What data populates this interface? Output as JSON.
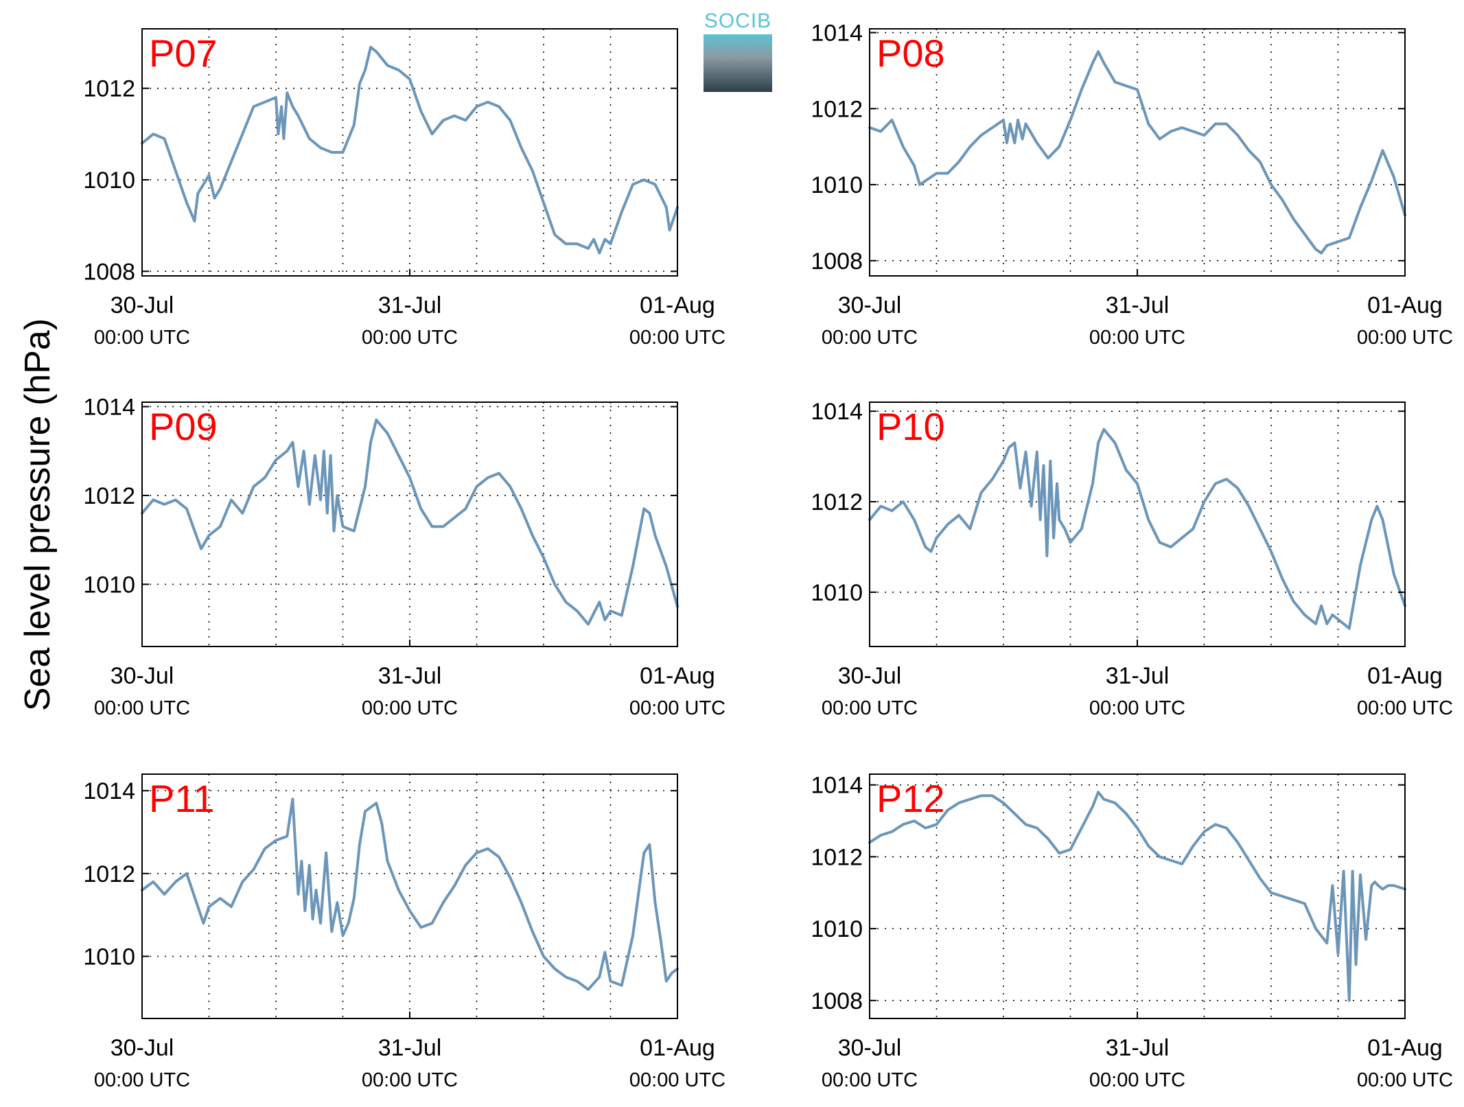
{
  "figure": {
    "ylabel": "Sea level pressure (hPa)",
    "logo_text": "SOCIB",
    "line_color": "#6b96b9",
    "panel_label_color": "#ff0000"
  },
  "chart_data": [
    {
      "type": "line",
      "panel_label": "P07",
      "xlabel": "",
      "ylabel": "",
      "xlim": [
        0,
        48
      ],
      "ylim": [
        1007.9,
        1013.3
      ],
      "yticks": [
        1008,
        1010,
        1012
      ],
      "xticks": [
        {
          "v": 0,
          "date": "30-Jul",
          "time": "00:00 UTC"
        },
        {
          "v": 24,
          "date": "31-Jul",
          "time": "00:00 UTC"
        },
        {
          "v": 48,
          "date": "01-Aug",
          "time": "00:00 UTC"
        }
      ],
      "grid": true,
      "x": [
        0,
        1,
        2,
        3,
        4,
        4.7,
        5,
        6,
        6.5,
        7,
        8,
        9,
        10,
        11,
        12,
        12.2,
        12.5,
        12.7,
        13,
        13.5,
        14,
        15,
        16,
        17,
        18,
        19,
        19.5,
        20,
        20.5,
        21,
        22,
        23,
        24,
        25,
        26,
        27,
        28,
        29,
        30,
        31,
        32,
        33,
        34,
        35,
        36,
        37,
        38,
        39,
        40,
        40.5,
        41,
        41.5,
        42,
        43,
        44,
        45,
        46,
        47,
        47.3,
        48
      ],
      "y": [
        1010.8,
        1011.0,
        1010.9,
        1010.2,
        1009.5,
        1009.1,
        1009.7,
        1010.1,
        1009.6,
        1009.8,
        1010.4,
        1011.0,
        1011.6,
        1011.7,
        1011.8,
        1011.0,
        1011.6,
        1010.9,
        1011.9,
        1011.6,
        1011.4,
        1010.9,
        1010.7,
        1010.6,
        1010.6,
        1011.2,
        1012.1,
        1012.4,
        1012.9,
        1012.8,
        1012.5,
        1012.4,
        1012.2,
        1011.5,
        1011.0,
        1011.3,
        1011.4,
        1011.3,
        1011.6,
        1011.7,
        1011.6,
        1011.3,
        1010.7,
        1010.2,
        1009.5,
        1008.8,
        1008.6,
        1008.6,
        1008.5,
        1008.7,
        1008.4,
        1008.7,
        1008.6,
        1009.3,
        1009.9,
        1010.0,
        1009.9,
        1009.4,
        1008.9,
        1009.4
      ]
    },
    {
      "type": "line",
      "panel_label": "P08",
      "xlabel": "",
      "ylabel": "",
      "xlim": [
        0,
        48
      ],
      "ylim": [
        1007.6,
        1014.1
      ],
      "yticks": [
        1008,
        1010,
        1012,
        1014
      ],
      "xticks": [
        {
          "v": 0,
          "date": "30-Jul",
          "time": "00:00 UTC"
        },
        {
          "v": 24,
          "date": "31-Jul",
          "time": "00:00 UTC"
        },
        {
          "v": 48,
          "date": "01-Aug",
          "time": "00:00 UTC"
        }
      ],
      "grid": true,
      "x": [
        0,
        1,
        2,
        3,
        4,
        4.5,
        5,
        6,
        7,
        8,
        9,
        10,
        11,
        12,
        12.3,
        12.6,
        13,
        13.3,
        13.7,
        14,
        15,
        16,
        17,
        18,
        19,
        20,
        20.5,
        21,
        22,
        23,
        24,
        25,
        26,
        27,
        28,
        29,
        30,
        31,
        32,
        33,
        34,
        35,
        36,
        37,
        38,
        39,
        40,
        40.5,
        41,
        42,
        43,
        44,
        45,
        46,
        47,
        48
      ],
      "y": [
        1011.5,
        1011.4,
        1011.7,
        1011.0,
        1010.5,
        1010.0,
        1010.1,
        1010.3,
        1010.3,
        1010.6,
        1011.0,
        1011.3,
        1011.5,
        1011.7,
        1011.1,
        1011.6,
        1011.1,
        1011.7,
        1011.2,
        1011.6,
        1011.1,
        1010.7,
        1011.0,
        1011.7,
        1012.5,
        1013.2,
        1013.5,
        1013.2,
        1012.7,
        1012.6,
        1012.5,
        1011.6,
        1011.2,
        1011.4,
        1011.5,
        1011.4,
        1011.3,
        1011.6,
        1011.6,
        1011.3,
        1010.9,
        1010.6,
        1010.0,
        1009.6,
        1009.1,
        1008.7,
        1008.3,
        1008.2,
        1008.4,
        1008.5,
        1008.6,
        1009.4,
        1010.1,
        1010.9,
        1010.2,
        1009.2
      ]
    },
    {
      "type": "line",
      "panel_label": "P09",
      "xlabel": "",
      "ylabel": "",
      "xlim": [
        0,
        48
      ],
      "ylim": [
        1008.6,
        1014.1
      ],
      "yticks": [
        1010,
        1012,
        1014
      ],
      "xticks": [
        {
          "v": 0,
          "date": "30-Jul",
          "time": "00:00 UTC"
        },
        {
          "v": 24,
          "date": "31-Jul",
          "time": "00:00 UTC"
        },
        {
          "v": 48,
          "date": "01-Aug",
          "time": "00:00 UTC"
        }
      ],
      "grid": true,
      "x": [
        0,
        1,
        2,
        3,
        4,
        5,
        5.3,
        6,
        7,
        8,
        9,
        10,
        11,
        12,
        13,
        13.5,
        14,
        14.5,
        15,
        15.5,
        16,
        16.3,
        16.6,
        16.9,
        17.2,
        17.5,
        18,
        19,
        20,
        20.5,
        21,
        22,
        23,
        24,
        25,
        26,
        27,
        28,
        29,
        30,
        31,
        32,
        33,
        34,
        35,
        36,
        37,
        38,
        39,
        40,
        41,
        41.5,
        42,
        43,
        44,
        45,
        45.5,
        46,
        47,
        48
      ],
      "y": [
        1011.6,
        1011.9,
        1011.8,
        1011.9,
        1011.7,
        1011.0,
        1010.8,
        1011.1,
        1011.3,
        1011.9,
        1011.6,
        1012.2,
        1012.4,
        1012.8,
        1013.0,
        1013.2,
        1012.2,
        1013.0,
        1011.8,
        1012.9,
        1011.9,
        1013.0,
        1011.6,
        1012.9,
        1011.2,
        1012.0,
        1011.3,
        1011.2,
        1012.2,
        1013.2,
        1013.7,
        1013.4,
        1012.9,
        1012.4,
        1011.7,
        1011.3,
        1011.3,
        1011.5,
        1011.7,
        1012.2,
        1012.4,
        1012.5,
        1012.2,
        1011.7,
        1011.1,
        1010.6,
        1010.0,
        1009.6,
        1009.4,
        1009.1,
        1009.6,
        1009.2,
        1009.4,
        1009.3,
        1010.4,
        1011.7,
        1011.6,
        1011.1,
        1010.4,
        1009.5
      ]
    },
    {
      "type": "line",
      "panel_label": "P10",
      "xlabel": "",
      "ylabel": "",
      "xlim": [
        0,
        48
      ],
      "ylim": [
        1008.8,
        1014.2
      ],
      "yticks": [
        1010,
        1012,
        1014
      ],
      "xticks": [
        {
          "v": 0,
          "date": "30-Jul",
          "time": "00:00 UTC"
        },
        {
          "v": 24,
          "date": "31-Jul",
          "time": "00:00 UTC"
        },
        {
          "v": 48,
          "date": "01-Aug",
          "time": "00:00 UTC"
        }
      ],
      "grid": true,
      "x": [
        0,
        1,
        2,
        3,
        4,
        5,
        5.5,
        6,
        7,
        8,
        9,
        10,
        11,
        12,
        12.5,
        13,
        13.5,
        14,
        14.5,
        15,
        15.3,
        15.6,
        15.9,
        16.2,
        16.5,
        16.8,
        17,
        17.5,
        18,
        19,
        20,
        20.5,
        21,
        22,
        23,
        24,
        25,
        26,
        27,
        28,
        29,
        30,
        31,
        32,
        33,
        34,
        35,
        36,
        37,
        38,
        39,
        40,
        40.5,
        41,
        41.5,
        42,
        43,
        44,
        45,
        45.5,
        46,
        47,
        48
      ],
      "y": [
        1011.6,
        1011.9,
        1011.8,
        1012.0,
        1011.6,
        1011.0,
        1010.9,
        1011.2,
        1011.5,
        1011.7,
        1011.4,
        1012.2,
        1012.5,
        1012.9,
        1013.2,
        1013.3,
        1012.3,
        1013.1,
        1011.9,
        1013.1,
        1011.6,
        1012.8,
        1010.8,
        1012.9,
        1011.2,
        1012.4,
        1011.6,
        1011.4,
        1011.1,
        1011.4,
        1012.4,
        1013.3,
        1013.6,
        1013.3,
        1012.7,
        1012.4,
        1011.6,
        1011.1,
        1011.0,
        1011.2,
        1011.4,
        1012.0,
        1012.4,
        1012.5,
        1012.3,
        1011.9,
        1011.4,
        1010.9,
        1010.3,
        1009.8,
        1009.5,
        1009.3,
        1009.7,
        1009.3,
        1009.5,
        1009.4,
        1009.2,
        1010.6,
        1011.6,
        1011.9,
        1011.6,
        1010.4,
        1009.7
      ]
    },
    {
      "type": "line",
      "panel_label": "P11",
      "xlabel": "",
      "ylabel": "",
      "xlim": [
        0,
        48
      ],
      "ylim": [
        1008.5,
        1014.4
      ],
      "yticks": [
        1010,
        1012,
        1014
      ],
      "xticks": [
        {
          "v": 0,
          "date": "30-Jul",
          "time": "00:00 UTC"
        },
        {
          "v": 24,
          "date": "31-Jul",
          "time": "00:00 UTC"
        },
        {
          "v": 48,
          "date": "01-Aug",
          "time": "00:00 UTC"
        }
      ],
      "grid": true,
      "x": [
        0,
        1,
        2,
        3,
        4,
        5,
        5.5,
        6,
        7,
        8,
        9,
        10,
        11,
        12,
        13,
        13.5,
        14,
        14.3,
        14.6,
        15,
        15.3,
        15.6,
        16,
        16.5,
        17,
        17.5,
        18,
        18.5,
        19,
        19.5,
        20,
        21,
        21.5,
        22,
        23,
        24,
        25,
        26,
        27,
        28,
        29,
        30,
        31,
        32,
        33,
        34,
        35,
        36,
        37,
        38,
        39,
        40,
        41,
        41.5,
        42,
        43,
        44,
        45,
        45.5,
        46,
        46.5,
        47,
        47.5,
        48
      ],
      "y": [
        1011.6,
        1011.8,
        1011.5,
        1011.8,
        1012.0,
        1011.2,
        1010.8,
        1011.2,
        1011.4,
        1011.2,
        1011.8,
        1012.1,
        1012.6,
        1012.8,
        1012.9,
        1013.8,
        1011.5,
        1012.3,
        1011.1,
        1012.2,
        1010.9,
        1011.6,
        1010.8,
        1012.5,
        1010.6,
        1011.3,
        1010.5,
        1010.8,
        1011.4,
        1012.7,
        1013.5,
        1013.7,
        1013.2,
        1012.3,
        1011.6,
        1011.1,
        1010.7,
        1010.8,
        1011.3,
        1011.7,
        1012.2,
        1012.5,
        1012.6,
        1012.4,
        1011.9,
        1011.3,
        1010.6,
        1010.0,
        1009.7,
        1009.5,
        1009.4,
        1009.2,
        1009.5,
        1010.1,
        1009.4,
        1009.3,
        1010.5,
        1012.5,
        1012.7,
        1011.3,
        1010.4,
        1009.4,
        1009.6,
        1009.7
      ]
    },
    {
      "type": "line",
      "panel_label": "P12",
      "xlabel": "",
      "ylabel": "",
      "xlim": [
        0,
        48
      ],
      "ylim": [
        1007.5,
        1014.3
      ],
      "yticks": [
        1008,
        1010,
        1012,
        1014
      ],
      "xticks": [
        {
          "v": 0,
          "date": "30-Jul",
          "time": "00:00 UTC"
        },
        {
          "v": 24,
          "date": "31-Jul",
          "time": "00:00 UTC"
        },
        {
          "v": 48,
          "date": "01-Aug",
          "time": "00:00 UTC"
        }
      ],
      "grid": true,
      "x": [
        0,
        1,
        2,
        3,
        4,
        5,
        6,
        7,
        8,
        9,
        10,
        11,
        12,
        13,
        14,
        15,
        16,
        17,
        18,
        19,
        20,
        20.5,
        21,
        22,
        23,
        24,
        25,
        26,
        27,
        28,
        29,
        30,
        31,
        32,
        33,
        34,
        35,
        36,
        37,
        38,
        39,
        40,
        41,
        41.5,
        42,
        42.5,
        43,
        43.3,
        43.6,
        44,
        44.5,
        45,
        45.3,
        45.6,
        46,
        46.5,
        47,
        48
      ],
      "y": [
        1012.4,
        1012.6,
        1012.7,
        1012.9,
        1013.0,
        1012.8,
        1012.9,
        1013.3,
        1013.5,
        1013.6,
        1013.7,
        1013.7,
        1013.5,
        1013.2,
        1012.9,
        1012.8,
        1012.5,
        1012.1,
        1012.2,
        1012.8,
        1013.4,
        1013.8,
        1013.6,
        1013.5,
        1013.2,
        1012.8,
        1012.3,
        1012.0,
        1011.9,
        1011.8,
        1012.3,
        1012.7,
        1012.9,
        1012.8,
        1012.4,
        1011.9,
        1011.4,
        1011.0,
        1010.9,
        1010.8,
        1010.7,
        1010.0,
        1009.6,
        1011.2,
        1009.3,
        1011.6,
        1008.0,
        1011.6,
        1009.0,
        1011.5,
        1009.7,
        1011.2,
        1011.3,
        1011.2,
        1011.1,
        1011.2,
        1011.2,
        1011.1
      ]
    }
  ]
}
